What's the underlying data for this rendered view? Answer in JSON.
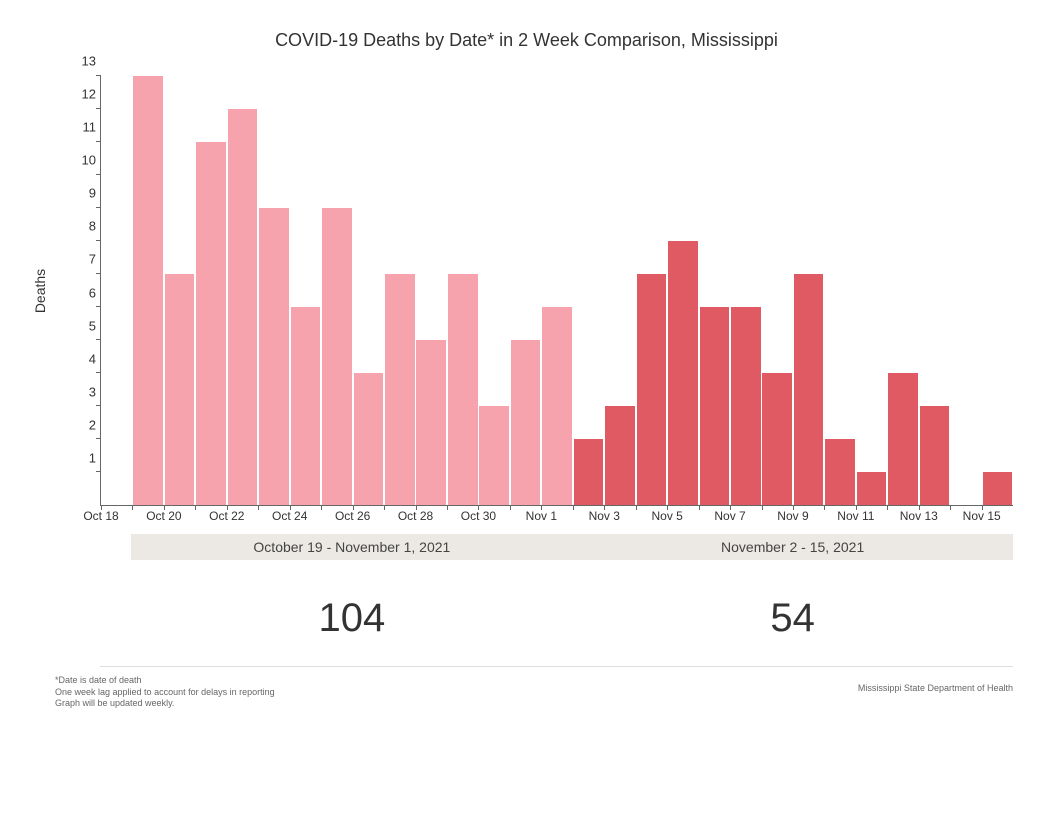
{
  "chart": {
    "type": "bar",
    "title": "COVID-19 Deaths by Date* in 2 Week Comparison, Mississippi",
    "ylabel": "Deaths",
    "ylim": [
      0,
      13
    ],
    "yticks": [
      1,
      2,
      3,
      4,
      5,
      6,
      7,
      8,
      9,
      10,
      11,
      12,
      13
    ],
    "background_color": "#ffffff",
    "axis_color": "#666666",
    "title_fontsize": 18,
    "label_fontsize": 14,
    "tick_fontsize": 12,
    "bar_width": 0.94,
    "x_slots": [
      {
        "tick_label": "Oct 18",
        "value": null,
        "color": null
      },
      {
        "tick_label": "",
        "value": 13,
        "color": "#f7a3ad"
      },
      {
        "tick_label": "Oct 20",
        "value": 7,
        "color": "#f7a3ad"
      },
      {
        "tick_label": "",
        "value": 11,
        "color": "#f7a3ad"
      },
      {
        "tick_label": "Oct 22",
        "value": 12,
        "color": "#f7a3ad"
      },
      {
        "tick_label": "",
        "value": 9,
        "color": "#f7a3ad"
      },
      {
        "tick_label": "Oct 24",
        "value": 6,
        "color": "#f7a3ad"
      },
      {
        "tick_label": "",
        "value": 9,
        "color": "#f7a3ad"
      },
      {
        "tick_label": "Oct 26",
        "value": 4,
        "color": "#f7a3ad"
      },
      {
        "tick_label": "",
        "value": 7,
        "color": "#f7a3ad"
      },
      {
        "tick_label": "Oct 28",
        "value": 5,
        "color": "#f7a3ad"
      },
      {
        "tick_label": "",
        "value": 7,
        "color": "#f7a3ad"
      },
      {
        "tick_label": "Oct 30",
        "value": 3,
        "color": "#f7a3ad"
      },
      {
        "tick_label": "",
        "value": 5,
        "color": "#f7a3ad"
      },
      {
        "tick_label": "Nov 1",
        "value": 6,
        "color": "#f7a3ad"
      },
      {
        "tick_label": "",
        "value": 2,
        "color": "#e05a63"
      },
      {
        "tick_label": "Nov 3",
        "value": 3,
        "color": "#e05a63"
      },
      {
        "tick_label": "",
        "value": 7,
        "color": "#e05a63"
      },
      {
        "tick_label": "Nov 5",
        "value": 8,
        "color": "#e05a63"
      },
      {
        "tick_label": "",
        "value": 6,
        "color": "#e05a63"
      },
      {
        "tick_label": "Nov 7",
        "value": 6,
        "color": "#e05a63"
      },
      {
        "tick_label": "",
        "value": 4,
        "color": "#e05a63"
      },
      {
        "tick_label": "Nov 9",
        "value": 7,
        "color": "#e05a63"
      },
      {
        "tick_label": "",
        "value": 2,
        "color": "#e05a63"
      },
      {
        "tick_label": "Nov 11",
        "value": 1,
        "color": "#e05a63"
      },
      {
        "tick_label": "",
        "value": 4,
        "color": "#e05a63"
      },
      {
        "tick_label": "Nov 13",
        "value": 3,
        "color": "#e05a63"
      },
      {
        "tick_label": "",
        "value": 0,
        "color": "#e05a63"
      },
      {
        "tick_label": "Nov 15",
        "value": 1,
        "color": "#e05a63"
      }
    ],
    "periods": {
      "band_background": "#ece8e3",
      "left": {
        "label": "October 19 - November 1, 2021",
        "total": "104"
      },
      "right": {
        "label": "November 2 - 15, 2021",
        "total": "54"
      }
    },
    "series_colors": {
      "period1": "#f7a3ad",
      "period2": "#e05a63"
    }
  },
  "footnotes": {
    "line1": "*Date is date of death",
    "line2": "One week lag applied to account for delays in reporting",
    "line3": "Graph will be updated weekly."
  },
  "attribution": "Mississippi State Department of Health"
}
